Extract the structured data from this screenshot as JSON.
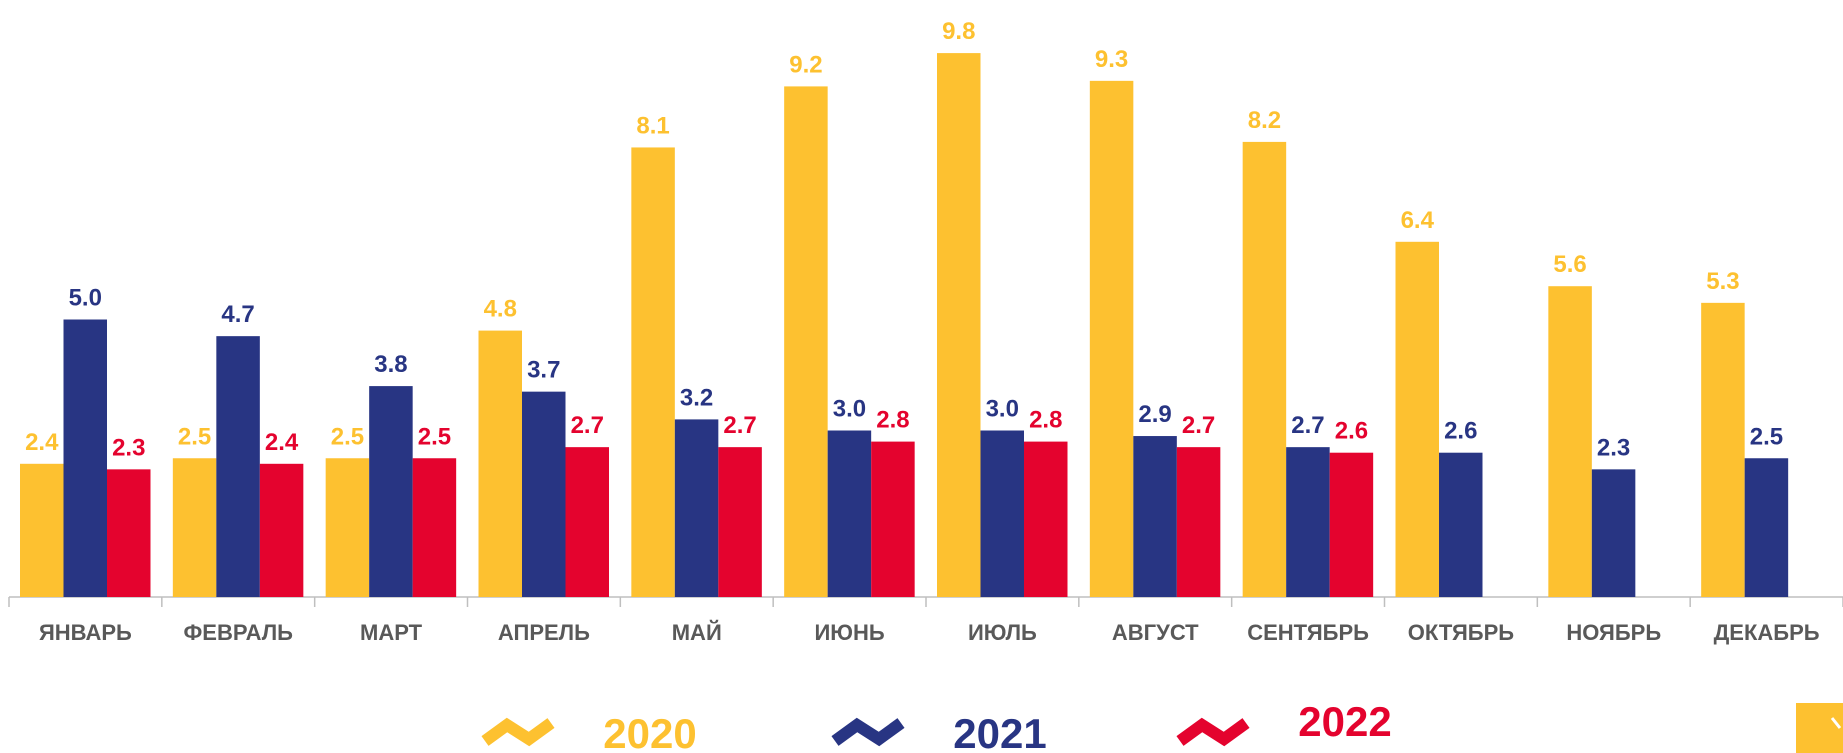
{
  "chart_data": {
    "type": "bar",
    "categories": [
      "ЯНВАРЬ",
      "ФЕВРАЛЬ",
      "МАРТ",
      "АПРЕЛЬ",
      "МАЙ",
      "ИЮНЬ",
      "ИЮЛЬ",
      "АВГУСТ",
      "СЕНТЯБРЬ",
      "ОКТЯБРЬ",
      "НОЯБРЬ",
      "ДЕКАБРЬ"
    ],
    "series": [
      {
        "name": "2020",
        "color": "#fdc130",
        "values": [
          2.4,
          2.5,
          2.5,
          4.8,
          8.1,
          9.2,
          9.8,
          9.3,
          8.2,
          6.4,
          5.6,
          5.3
        ]
      },
      {
        "name": "2021",
        "color": "#283583",
        "values": [
          5.0,
          4.7,
          3.8,
          3.7,
          3.2,
          3.0,
          3.0,
          2.9,
          2.7,
          2.6,
          2.3,
          2.5
        ],
        "value_labels": [
          "5.0",
          "4.7",
          "3.8",
          "3.7",
          "3.2",
          "3.0",
          "3.0",
          "2.9",
          "2.7",
          "2.6",
          "2.3",
          "2.5"
        ]
      },
      {
        "name": "2022",
        "color": "#e4032e",
        "values": [
          2.3,
          2.4,
          2.5,
          2.7,
          2.7,
          2.8,
          2.8,
          2.7,
          2.6,
          null,
          null,
          null
        ]
      }
    ],
    "legend": "bottom"
  }
}
